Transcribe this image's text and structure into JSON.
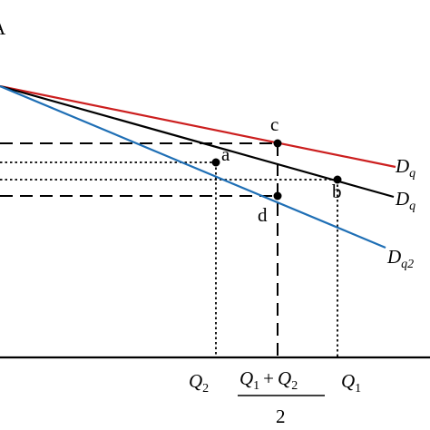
{
  "diagram": {
    "points": {
      "a": "a",
      "b": "b",
      "c": "c",
      "d": "d"
    },
    "curves": {
      "red": {
        "letter": "D",
        "sub": "q",
        "color": "#cc1f1f"
      },
      "black": {
        "letter": "D",
        "sub": "q",
        "color": "#000000"
      },
      "blue": {
        "letter": "D",
        "sub": "q2",
        "color": "#1f6fb5"
      }
    },
    "axis_labels": {
      "q2": {
        "letter": "Q",
        "sub": "2"
      },
      "mid_numerator": {
        "l1": "Q",
        "s1": "1",
        "op": "+",
        "l2": "Q",
        "s2": "2"
      },
      "mid_denominator": "2",
      "q1": {
        "letter": "Q",
        "sub": "1"
      },
      "corner": "A"
    }
  }
}
